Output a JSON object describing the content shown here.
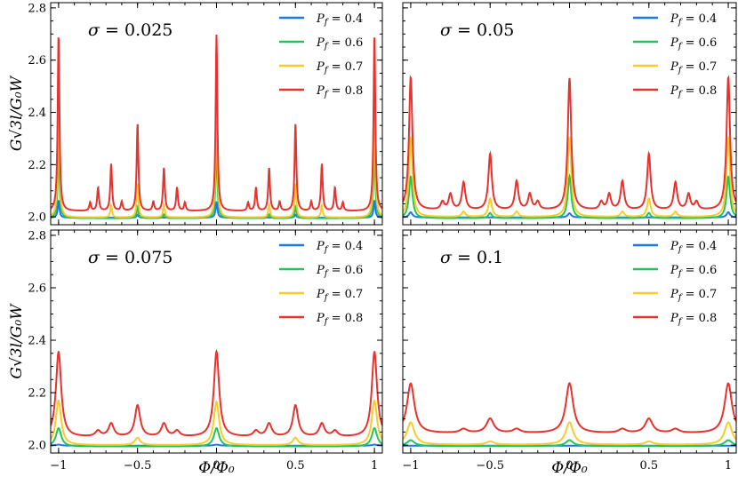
{
  "chart_data": [
    {
      "type": "line",
      "panel": "top-left",
      "annotation": "σ = 0.025",
      "ylabel": "G√3l/G₀W",
      "xlabel": "",
      "xlim": [
        -1.05,
        1.05
      ],
      "ylim": [
        1.97,
        2.82
      ],
      "xticks": [
        "-1",
        "-0.5",
        "0",
        "0.5",
        "1"
      ],
      "yticks": [
        "2.0",
        "2.2",
        "2.4",
        "2.6",
        "2.8"
      ],
      "show_x_tick_labels": false,
      "show_y_tick_labels": true,
      "legend": "top-right",
      "grid": false,
      "series": [
        {
          "name": "P_f = 0.4",
          "color": "#1f77e8",
          "baseline": 1.997,
          "peaks": [
            [
              -1,
              0.065
            ],
            [
              0,
              0.062
            ],
            [
              1,
              0.065
            ],
            [
              -0.5,
              0.012
            ],
            [
              0.5,
              0.012
            ]
          ]
        },
        {
          "name": "P_f = 0.6",
          "color": "#22c45a",
          "baseline": 1.995,
          "peaks": [
            [
              -1,
              0.285
            ],
            [
              0,
              0.28
            ],
            [
              1,
              0.285
            ],
            [
              -0.5,
              0.045
            ],
            [
              0.5,
              0.045
            ],
            [
              -0.333,
              0.015
            ],
            [
              0.333,
              0.015
            ]
          ]
        },
        {
          "name": "P_f = 0.7",
          "color": "#f5cd2a",
          "baseline": 1.998,
          "peaks": [
            [
              -1,
              0.46
            ],
            [
              0,
              0.455
            ],
            [
              1,
              0.46
            ],
            [
              -0.5,
              0.13
            ],
            [
              0.5,
              0.13
            ],
            [
              -0.333,
              0.05
            ],
            [
              0.333,
              0.05
            ],
            [
              -0.667,
              0.045
            ],
            [
              0.667,
              0.045
            ]
          ]
        },
        {
          "name": "P_f = 0.8",
          "color": "#e8322e",
          "baseline": 2.022,
          "peaks": [
            [
              -1,
              0.68
            ],
            [
              0,
              0.675
            ],
            [
              1,
              0.68
            ],
            [
              -0.5,
              0.335
            ],
            [
              0.5,
              0.335
            ],
            [
              -0.667,
              0.18
            ],
            [
              0.667,
              0.18
            ],
            [
              -0.333,
              0.165
            ],
            [
              0.333,
              0.165
            ],
            [
              -0.75,
              0.09
            ],
            [
              0.75,
              0.09
            ],
            [
              -0.25,
              0.09
            ],
            [
              0.25,
              0.09
            ],
            [
              -0.8,
              0.032
            ],
            [
              0.8,
              0.032
            ],
            [
              -0.2,
              0.032
            ],
            [
              0.2,
              0.032
            ],
            [
              -0.6,
              0.035
            ],
            [
              0.6,
              0.035
            ],
            [
              -0.4,
              0.035
            ],
            [
              0.4,
              0.035
            ]
          ]
        }
      ],
      "peak_width": 0.0065
    },
    {
      "type": "line",
      "panel": "top-right",
      "annotation": "σ = 0.05",
      "ylabel": "",
      "xlabel": "",
      "xlim": [
        -1.05,
        1.05
      ],
      "ylim": [
        1.97,
        2.82
      ],
      "xticks": [
        "-1",
        "-0.5",
        "0",
        "0.5",
        "1"
      ],
      "yticks": [
        "2.0",
        "2.2",
        "2.4",
        "2.6",
        "2.8"
      ],
      "show_x_tick_labels": false,
      "show_y_tick_labels": false,
      "legend": "top-right",
      "grid": false,
      "series": [
        {
          "name": "P_f = 0.4",
          "color": "#1f77e8",
          "baseline": 1.998,
          "peaks": [
            [
              -1,
              0.02
            ],
            [
              0,
              0.016
            ],
            [
              1,
              0.02
            ]
          ]
        },
        {
          "name": "P_f = 0.6",
          "color": "#22c45a",
          "baseline": 1.995,
          "peaks": [
            [
              -1,
              0.16
            ],
            [
              0,
              0.16
            ],
            [
              1,
              0.16
            ],
            [
              -0.5,
              0.02
            ],
            [
              0.5,
              0.02
            ]
          ]
        },
        {
          "name": "P_f = 0.7",
          "color": "#f5cd2a",
          "baseline": 2.0,
          "peaks": [
            [
              -1,
              0.305
            ],
            [
              0,
              0.305
            ],
            [
              1,
              0.305
            ],
            [
              -0.5,
              0.07
            ],
            [
              0.5,
              0.07
            ],
            [
              -0.333,
              0.02
            ],
            [
              0.333,
              0.02
            ],
            [
              -0.667,
              0.02
            ],
            [
              0.667,
              0.02
            ]
          ]
        },
        {
          "name": "P_f = 0.8",
          "color": "#e8322e",
          "baseline": 2.025,
          "peaks": [
            [
              -1,
              0.51
            ],
            [
              0,
              0.505
            ],
            [
              1,
              0.51
            ],
            [
              -0.5,
              0.215
            ],
            [
              0.5,
              0.215
            ],
            [
              -0.667,
              0.105
            ],
            [
              0.667,
              0.105
            ],
            [
              -0.333,
              0.11
            ],
            [
              0.333,
              0.11
            ],
            [
              -0.75,
              0.06
            ],
            [
              0.75,
              0.06
            ],
            [
              -0.25,
              0.06
            ],
            [
              0.25,
              0.06
            ],
            [
              -0.8,
              0.03
            ],
            [
              0.8,
              0.03
            ],
            [
              -0.2,
              0.03
            ],
            [
              0.2,
              0.03
            ]
          ]
        }
      ],
      "peak_width": 0.013
    },
    {
      "type": "line",
      "panel": "bottom-left",
      "annotation": "σ = 0.075",
      "ylabel": "G√3l/G₀W",
      "xlabel": "Φ/Φ₀",
      "xlim": [
        -1.05,
        1.05
      ],
      "ylim": [
        1.97,
        2.82
      ],
      "xticks": [
        "-1",
        "-0.5",
        "0",
        "0.5",
        "1"
      ],
      "yticks": [
        "2.0",
        "2.2",
        "2.4",
        "2.6",
        "2.8"
      ],
      "show_x_tick_labels": true,
      "show_y_tick_labels": true,
      "legend": "top-right",
      "grid": false,
      "series": [
        {
          "name": "P_f = 0.4",
          "color": "#1f77e8",
          "baseline": 1.998,
          "peaks": [
            [
              -1,
              0.004
            ],
            [
              0,
              0.004
            ],
            [
              1,
              0.004
            ]
          ]
        },
        {
          "name": "P_f = 0.6",
          "color": "#22c45a",
          "baseline": 1.995,
          "peaks": [
            [
              -1,
              0.07
            ],
            [
              0,
              0.07
            ],
            [
              1,
              0.07
            ]
          ]
        },
        {
          "name": "P_f = 0.7",
          "color": "#f5cd2a",
          "baseline": 2.0,
          "peaks": [
            [
              -1,
              0.17
            ],
            [
              0,
              0.165
            ],
            [
              1,
              0.17
            ],
            [
              -0.5,
              0.028
            ],
            [
              0.5,
              0.028
            ]
          ]
        },
        {
          "name": "P_f = 0.8",
          "color": "#e8322e",
          "baseline": 2.03,
          "peaks": [
            [
              -1,
              0.325
            ],
            [
              0,
              0.325
            ],
            [
              1,
              0.325
            ],
            [
              -0.5,
              0.12
            ],
            [
              0.5,
              0.12
            ],
            [
              -0.667,
              0.05
            ],
            [
              0.667,
              0.05
            ],
            [
              -0.333,
              0.05
            ],
            [
              0.333,
              0.05
            ],
            [
              -0.75,
              0.022
            ],
            [
              0.75,
              0.022
            ],
            [
              -0.25,
              0.022
            ],
            [
              0.25,
              0.022
            ]
          ]
        }
      ],
      "peak_width": 0.02
    },
    {
      "type": "line",
      "panel": "bottom-right",
      "annotation": "σ = 0.1",
      "ylabel": "",
      "xlabel": "Φ/Φ₀",
      "xlim": [
        -1.05,
        1.05
      ],
      "ylim": [
        1.97,
        2.82
      ],
      "xticks": [
        "-1",
        "-0.5",
        "0",
        "0.5",
        "1"
      ],
      "yticks": [
        "2.0",
        "2.2",
        "2.4",
        "2.6",
        "2.8"
      ],
      "show_x_tick_labels": true,
      "show_y_tick_labels": false,
      "legend": "top-right",
      "grid": false,
      "series": [
        {
          "name": "P_f = 0.4",
          "color": "#1f77e8",
          "baseline": 1.998,
          "peaks": []
        },
        {
          "name": "P_f = 0.6",
          "color": "#22c45a",
          "baseline": 1.997,
          "peaks": [
            [
              -1,
              0.022
            ],
            [
              0,
              0.022
            ],
            [
              1,
              0.022
            ]
          ]
        },
        {
          "name": "P_f = 0.7",
          "color": "#f5cd2a",
          "baseline": 2.002,
          "peaks": [
            [
              -1,
              0.085
            ],
            [
              0,
              0.085
            ],
            [
              1,
              0.085
            ],
            [
              -0.5,
              0.012
            ],
            [
              0.5,
              0.012
            ]
          ]
        },
        {
          "name": "P_f = 0.8",
          "color": "#e8322e",
          "baseline": 2.045,
          "peaks": [
            [
              -1,
              0.19
            ],
            [
              0,
              0.19
            ],
            [
              1,
              0.19
            ],
            [
              -0.5,
              0.055
            ],
            [
              0.5,
              0.055
            ],
            [
              -0.667,
              0.015
            ],
            [
              0.667,
              0.015
            ],
            [
              -0.333,
              0.015
            ],
            [
              0.333,
              0.015
            ]
          ]
        }
      ],
      "peak_width": 0.028
    }
  ]
}
